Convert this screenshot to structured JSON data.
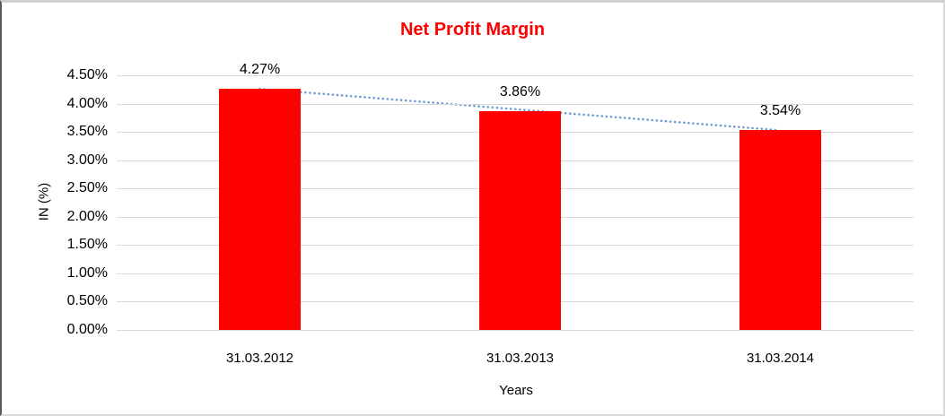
{
  "chart_data": {
    "type": "bar",
    "title": "Net Profit Margin",
    "title_color": "#ff0000",
    "categories": [
      "31.03.2012",
      "31.03.2013",
      "31.03.2014"
    ],
    "values": [
      4.27,
      3.86,
      3.54
    ],
    "value_labels": [
      "4.27%",
      "3.86%",
      "3.54%"
    ],
    "xlabel": "Years",
    "ylabel": "IN (%)",
    "ylim": [
      0,
      4.5
    ],
    "ytick_step": 0.5,
    "ytick_labels": [
      "0.00%",
      "0.50%",
      "1.00%",
      "1.50%",
      "2.00%",
      "2.50%",
      "3.00%",
      "3.50%",
      "4.00%",
      "4.50%"
    ],
    "bar_color": "#ff0000",
    "gridline_color": "#d9d9d9",
    "grid": true,
    "legend": "none",
    "trendline": {
      "style": "dotted",
      "color": "#6c9bd2",
      "start_value": 4.26,
      "end_value": 3.53,
      "spans_categories": [
        0,
        2
      ]
    }
  }
}
